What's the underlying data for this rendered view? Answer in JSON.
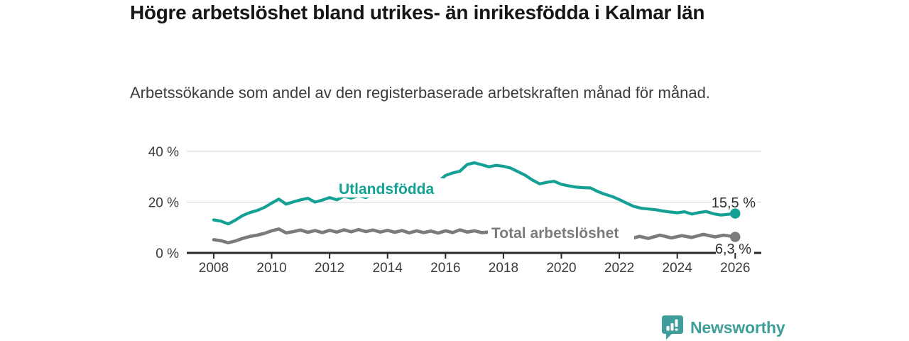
{
  "header": {
    "title": "Högre arbetslöshet bland utrikes- än inrikesfödda i Kalmar län",
    "subtitle": "Arbetssökande som andel av den registerbaserade arbetskraften månad för månad."
  },
  "branding": {
    "logo_text": "Newsworthy",
    "logo_icon": "bar-chart-speech-bubble-icon",
    "logo_color": "#3f9e99"
  },
  "colors": {
    "series_utlandsfodda": "#14a094",
    "series_total": "#7b7b7b",
    "grid": "#d9d9d9",
    "axis": "#2a2a2a",
    "tick_text": "#3b3b3b"
  },
  "chart_data": {
    "type": "line",
    "title": "Högre arbetslöshet bland utrikes- än inrikesfödda i Kalmar län",
    "subtitle": "Arbetssökande som andel av den registerbaserade arbetskraften månad för månad.",
    "grid": "horizontal",
    "legend_position": "inline-labels",
    "xlim": [
      2007.07,
      2026.9
    ],
    "ylim": [
      0,
      44
    ],
    "x_ticks": [
      "2008",
      "2010",
      "2012",
      "2014",
      "2016",
      "2018",
      "2020",
      "2022",
      "2024",
      "2026"
    ],
    "x_tick_values": [
      2008,
      2010,
      2012,
      2014,
      2016,
      2018,
      2020,
      2022,
      2024,
      2026
    ],
    "y_ticks": [
      {
        "value": 40,
        "label": "40 %"
      },
      {
        "value": 20,
        "label": "20 %"
      },
      {
        "value": 0,
        "label": "0 %"
      }
    ],
    "series": [
      {
        "name": "Utlandsfödda",
        "color": "#14a094",
        "end_label": "15,5 %",
        "end_value": 15.5,
        "x": [
          2008.0,
          2008.25,
          2008.5,
          2008.75,
          2009.0,
          2009.25,
          2009.5,
          2009.75,
          2010.0,
          2010.25,
          2010.5,
          2010.75,
          2011.0,
          2011.25,
          2011.5,
          2011.75,
          2012.0,
          2012.25,
          2012.5,
          2012.75,
          2013.0,
          2013.25,
          2013.5,
          2013.75,
          2014.0,
          2014.25,
          2014.5,
          2014.75,
          2015.0,
          2015.25,
          2015.5,
          2015.75,
          2016.0,
          2016.25,
          2016.5,
          2016.75,
          2017.0,
          2017.25,
          2017.5,
          2017.75,
          2018.0,
          2018.25,
          2018.5,
          2018.75,
          2019.0,
          2019.25,
          2019.5,
          2019.75,
          2020.0,
          2020.25,
          2020.5,
          2020.75,
          2021.0,
          2021.25,
          2021.5,
          2021.75,
          2022.0,
          2022.25,
          2022.5,
          2022.75,
          2023.0,
          2023.25,
          2023.5,
          2023.75,
          2024.0,
          2024.25,
          2024.5,
          2024.75,
          2025.0,
          2025.25,
          2025.5,
          2025.75,
          2026.0
        ],
        "values": [
          13.0,
          12.5,
          11.4,
          12.9,
          14.7,
          15.9,
          16.7,
          17.9,
          19.6,
          21.2,
          19.2,
          20.1,
          20.9,
          21.5,
          20.0,
          20.8,
          21.8,
          20.9,
          22.3,
          21.6,
          22.5,
          21.8,
          23.1,
          22.5,
          23.5,
          22.8,
          24.2,
          23.7,
          24.9,
          24.3,
          26.0,
          28.0,
          30.5,
          31.5,
          32.2,
          34.8,
          35.5,
          34.7,
          33.9,
          34.5,
          34.1,
          33.4,
          32.0,
          30.6,
          28.7,
          27.2,
          27.8,
          28.2,
          27.0,
          26.4,
          25.9,
          25.7,
          25.6,
          24.2,
          23.1,
          22.2,
          21.0,
          19.6,
          18.3,
          17.6,
          17.3,
          17.0,
          16.5,
          16.1,
          15.8,
          16.2,
          15.3,
          15.9,
          16.3,
          15.4,
          14.9,
          15.2,
          15.5
        ]
      },
      {
        "name": "Total arbetslöshet",
        "color": "#7b7b7b",
        "end_label": "6,3 %",
        "end_value": 6.3,
        "x": [
          2008.0,
          2008.25,
          2008.5,
          2008.75,
          2009.0,
          2009.25,
          2009.5,
          2009.75,
          2010.0,
          2010.25,
          2010.5,
          2010.75,
          2011.0,
          2011.25,
          2011.5,
          2011.75,
          2012.0,
          2012.25,
          2012.5,
          2012.75,
          2013.0,
          2013.25,
          2013.5,
          2013.75,
          2014.0,
          2014.25,
          2014.5,
          2014.75,
          2015.0,
          2015.25,
          2015.5,
          2015.75,
          2016.0,
          2016.25,
          2016.5,
          2016.75,
          2017.0,
          2017.25,
          2017.5,
          2017.75,
          2018.0,
          2018.5,
          2019.0,
          2019.5,
          2020.0,
          2020.5,
          2021.0,
          2021.5,
          2022.0,
          2022.3,
          2022.7,
          2023.0,
          2023.4,
          2023.8,
          2024.15,
          2024.5,
          2024.9,
          2025.3,
          2025.6,
          2026.0
        ],
        "values": [
          5.2,
          4.8,
          4.0,
          4.7,
          5.7,
          6.5,
          7.0,
          7.7,
          8.7,
          9.4,
          7.9,
          8.4,
          9.0,
          8.1,
          8.8,
          8.0,
          8.9,
          8.2,
          9.1,
          8.3,
          9.2,
          8.4,
          9.0,
          8.2,
          8.9,
          8.1,
          8.8,
          7.9,
          8.7,
          8.0,
          8.6,
          7.8,
          8.7,
          8.0,
          9.1,
          8.2,
          8.7,
          8.0,
          8.2,
          7.7,
          7.9,
          7.6,
          7.3,
          7.1,
          7.9,
          7.4,
          7.0,
          6.6,
          6.1,
          5.4,
          6.5,
          5.7,
          7.0,
          5.9,
          6.8,
          6.1,
          7.3,
          6.3,
          7.0,
          6.3
        ]
      }
    ]
  }
}
